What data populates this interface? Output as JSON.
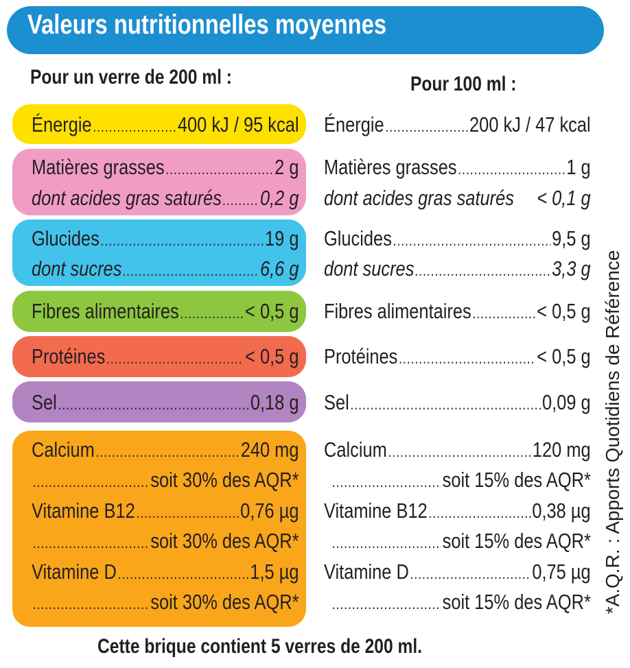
{
  "title": "Valeurs nutritionnelles moyennes",
  "header_left": "Pour un verre de 200 ml :",
  "header_right": "Pour 100 ml :",
  "colors": {
    "title_bar": "#1c8fd0",
    "energie": "#ffe100",
    "matieres_grasses": "#f19cc5",
    "glucides": "#42c3ec",
    "fibres": "#8dc63f",
    "proteines": "#f26b4f",
    "sel": "#b284c2",
    "vitamines": "#f9a61a"
  },
  "left": {
    "energie": {
      "label": "Énergie",
      "value": "400 kJ / 95 kcal"
    },
    "matieres_grasses": {
      "label": "Matières grasses",
      "value": "2 g"
    },
    "acides_gras": {
      "label": "dont acides gras saturés",
      "value": "0,2 g"
    },
    "glucides": {
      "label": "Glucides",
      "value": "19 g"
    },
    "sucres": {
      "label": "dont sucres",
      "value": "6,6 g"
    },
    "fibres": {
      "label": "Fibres alimentaires",
      "value": "< 0,5 g"
    },
    "proteines": {
      "label": "Protéines",
      "value": "< 0,5 g"
    },
    "sel": {
      "label": "Sel",
      "value": "0,18 g"
    },
    "calcium": {
      "label": "Calcium",
      "value": "240 mg"
    },
    "calcium_aqr": {
      "value": "soit 30% des AQR*"
    },
    "b12": {
      "label": "Vitamine B12",
      "value": "0,76 µg"
    },
    "b12_aqr": {
      "value": "soit 30% des AQR*"
    },
    "vitd": {
      "label": "Vitamine D",
      "value": "1,5 µg"
    },
    "vitd_aqr": {
      "value": "soit 30% des AQR*"
    }
  },
  "right": {
    "energie": {
      "label": "Énergie",
      "value": "200 kJ / 47 kcal"
    },
    "matieres_grasses": {
      "label": "Matières grasses",
      "value": "1 g"
    },
    "acides_gras": {
      "label": "dont acides gras saturés",
      "value": "< 0,1 g"
    },
    "glucides": {
      "label": "Glucides",
      "value": "9,5 g"
    },
    "sucres": {
      "label": "dont sucres",
      "value": "3,3 g"
    },
    "fibres": {
      "label": "Fibres alimentaires",
      "value": "< 0,5 g"
    },
    "proteines": {
      "label": "Protéines",
      "value": "< 0,5 g"
    },
    "sel": {
      "label": "Sel",
      "value": "0,09 g"
    },
    "calcium": {
      "label": "Calcium",
      "value": "120 mg"
    },
    "calcium_aqr": {
      "value": "soit 15% des AQR*"
    },
    "b12": {
      "label": "Vitamine B12",
      "value": "0,38 µg"
    },
    "b12_aqr": {
      "value": "soit 15% des AQR*"
    },
    "vitd": {
      "label": "Vitamine D",
      "value": "0,75 µg"
    },
    "vitd_aqr": {
      "value": "soit 15% des AQR*"
    }
  },
  "side_note": "*A.Q.R. : Apports Quotidiens de Référence",
  "footer": "Cette brique contient 5 verres de 200 ml."
}
